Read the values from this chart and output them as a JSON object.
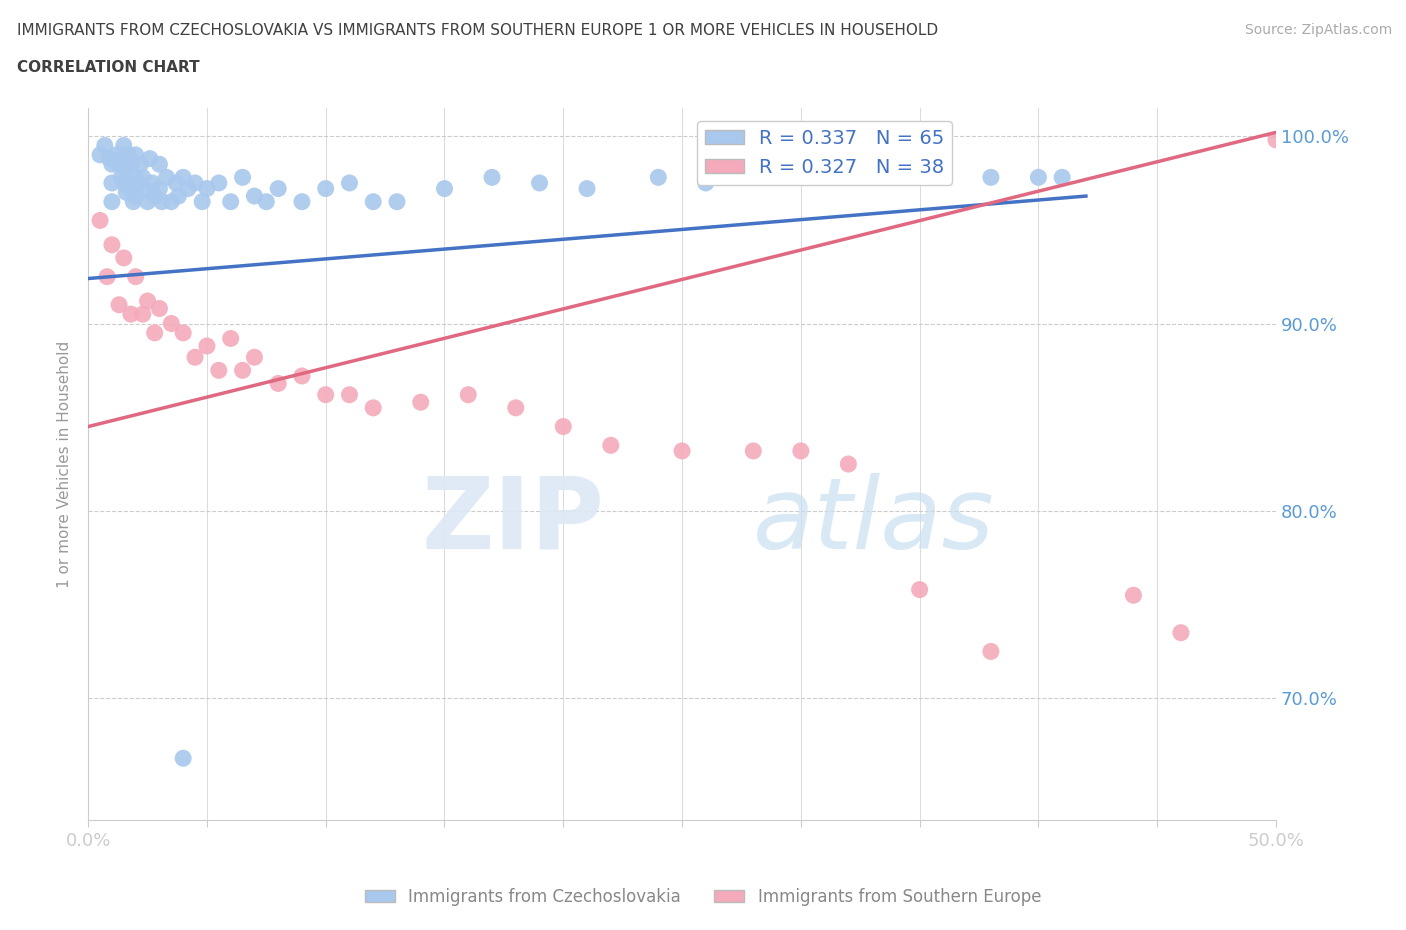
{
  "title_line1": "IMMIGRANTS FROM CZECHOSLOVAKIA VS IMMIGRANTS FROM SOUTHERN EUROPE 1 OR MORE VEHICLES IN HOUSEHOLD",
  "title_line2": "CORRELATION CHART",
  "source_text": "Source: ZipAtlas.com",
  "ylabel": "1 or more Vehicles in Household",
  "xlim": [
    0.0,
    0.5
  ],
  "ylim": [
    0.635,
    1.015
  ],
  "ytick_vals": [
    0.7,
    0.8,
    0.9,
    1.0
  ],
  "ytick_labels": [
    "70.0%",
    "80.0%",
    "90.0%",
    "100.0%"
  ],
  "xtick_vals": [
    0.0,
    0.05,
    0.1,
    0.15,
    0.2,
    0.25,
    0.3,
    0.35,
    0.4,
    0.45,
    0.5
  ],
  "xtick_labels": [
    "0.0%",
    "",
    "",
    "",
    "",
    "",
    "",
    "",
    "",
    "",
    "50.0%"
  ],
  "blue_color": "#A8C8ED",
  "pink_color": "#F4AABB",
  "blue_line_color": "#4472C4",
  "pink_line_color": "#E06880",
  "legend_label_blue": "R = 0.337   N = 65",
  "legend_label_pink": "R = 0.327   N = 38",
  "label_blue": "Immigrants from Czechoslovakia",
  "label_pink": "Immigrants from Southern Europe",
  "watermark_zip": "ZIP",
  "watermark_atlas": "atlas",
  "title_color": "#404040",
  "tick_color": "#5B9BD5",
  "blue_line_x": [
    0.0,
    0.42
  ],
  "blue_line_y": [
    0.924,
    0.968
  ],
  "pink_line_x": [
    0.0,
    0.5
  ],
  "pink_line_y": [
    0.845,
    1.002
  ],
  "blue_scatter_x": [
    0.005,
    0.007,
    0.009,
    0.01,
    0.01,
    0.01,
    0.012,
    0.013,
    0.014,
    0.015,
    0.015,
    0.015,
    0.016,
    0.016,
    0.017,
    0.018,
    0.018,
    0.019,
    0.02,
    0.02,
    0.02,
    0.021,
    0.022,
    0.023,
    0.024,
    0.025,
    0.026,
    0.027,
    0.028,
    0.03,
    0.03,
    0.031,
    0.033,
    0.035,
    0.037,
    0.038,
    0.04,
    0.042,
    0.045,
    0.048,
    0.05,
    0.055,
    0.06,
    0.065,
    0.07,
    0.075,
    0.08,
    0.09,
    0.1,
    0.11,
    0.12,
    0.13,
    0.15,
    0.17,
    0.19,
    0.21,
    0.24,
    0.26,
    0.29,
    0.32,
    0.35,
    0.38,
    0.4,
    0.41,
    0.04
  ],
  "blue_scatter_y": [
    0.99,
    0.995,
    0.988,
    0.985,
    0.975,
    0.965,
    0.99,
    0.985,
    0.978,
    0.995,
    0.988,
    0.975,
    0.982,
    0.97,
    0.99,
    0.985,
    0.972,
    0.965,
    0.99,
    0.978,
    0.968,
    0.975,
    0.985,
    0.978,
    0.972,
    0.965,
    0.988,
    0.975,
    0.968,
    0.985,
    0.972,
    0.965,
    0.978,
    0.965,
    0.975,
    0.968,
    0.978,
    0.972,
    0.975,
    0.965,
    0.972,
    0.975,
    0.965,
    0.978,
    0.968,
    0.965,
    0.972,
    0.965,
    0.972,
    0.975,
    0.965,
    0.965,
    0.972,
    0.978,
    0.975,
    0.972,
    0.978,
    0.975,
    0.978,
    0.978,
    0.978,
    0.978,
    0.978,
    0.978,
    0.668
  ],
  "pink_scatter_x": [
    0.005,
    0.008,
    0.01,
    0.013,
    0.015,
    0.018,
    0.02,
    0.023,
    0.025,
    0.028,
    0.03,
    0.035,
    0.04,
    0.045,
    0.05,
    0.055,
    0.06,
    0.065,
    0.07,
    0.08,
    0.09,
    0.1,
    0.11,
    0.12,
    0.14,
    0.16,
    0.18,
    0.2,
    0.22,
    0.25,
    0.28,
    0.3,
    0.32,
    0.35,
    0.38,
    0.44,
    0.46,
    0.5
  ],
  "pink_scatter_y": [
    0.955,
    0.925,
    0.942,
    0.91,
    0.935,
    0.905,
    0.925,
    0.905,
    0.912,
    0.895,
    0.908,
    0.9,
    0.895,
    0.882,
    0.888,
    0.875,
    0.892,
    0.875,
    0.882,
    0.868,
    0.872,
    0.862,
    0.862,
    0.855,
    0.858,
    0.862,
    0.855,
    0.845,
    0.835,
    0.832,
    0.832,
    0.832,
    0.825,
    0.758,
    0.725,
    0.755,
    0.735,
    0.998
  ]
}
